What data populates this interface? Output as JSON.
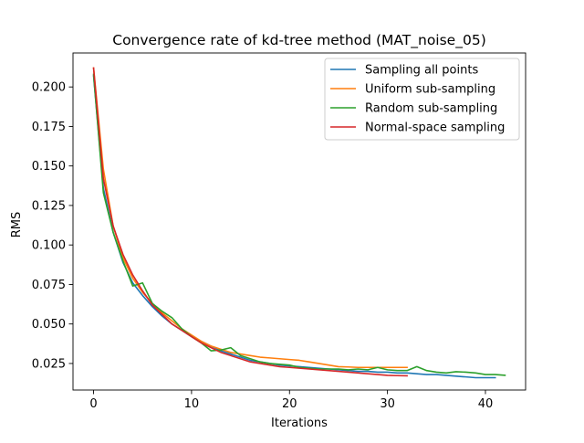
{
  "chart_data": {
    "type": "line",
    "title": "Convergence rate of kd-tree method (MAT_noise_05)",
    "xlabel": "Iterations",
    "ylabel": "RMS",
    "xlim": [
      -2.1,
      44.1
    ],
    "ylim": [
      0.0082,
      0.2215
    ],
    "xticks": [
      0,
      10,
      20,
      30,
      40
    ],
    "yticks": [
      0.025,
      0.05,
      0.075,
      0.1,
      0.125,
      0.15,
      0.175,
      0.2
    ],
    "ytick_labels": [
      "0.025",
      "0.050",
      "0.075",
      "0.100",
      "0.125",
      "0.150",
      "0.175",
      "0.200"
    ],
    "grid": false,
    "legend_position": "top-right",
    "series": [
      {
        "name": "Sampling all points",
        "color": "#1f77b4",
        "x": [
          0,
          1,
          2,
          3,
          4,
          5,
          6,
          7,
          8,
          9,
          10,
          11,
          12,
          13,
          14,
          15,
          16,
          17,
          18,
          19,
          20,
          21,
          22,
          23,
          24,
          25,
          26,
          27,
          28,
          29,
          30,
          31,
          32,
          33,
          34,
          35,
          36,
          37,
          38,
          39,
          40,
          41
        ],
        "y": [
          0.207,
          0.136,
          0.108,
          0.089,
          0.076,
          0.068,
          0.061,
          0.055,
          0.05,
          0.046,
          0.042,
          0.039,
          0.036,
          0.033,
          0.031,
          0.029,
          0.027,
          0.026,
          0.025,
          0.024,
          0.0235,
          0.023,
          0.0225,
          0.022,
          0.0215,
          0.021,
          0.0205,
          0.02,
          0.02,
          0.0195,
          0.0195,
          0.019,
          0.019,
          0.0185,
          0.018,
          0.018,
          0.0175,
          0.017,
          0.0165,
          0.016,
          0.016,
          0.016
        ]
      },
      {
        "name": "Uniform sub-sampling",
        "color": "#ff7f0e",
        "x": [
          0,
          1,
          2,
          3,
          4,
          5,
          6,
          7,
          8,
          9,
          10,
          11,
          12,
          13,
          14,
          15,
          16,
          17,
          18,
          19,
          20,
          21,
          22,
          23,
          24,
          25,
          26,
          27,
          28,
          29,
          30,
          31,
          32
        ],
        "y": [
          0.212,
          0.148,
          0.112,
          0.092,
          0.079,
          0.07,
          0.063,
          0.057,
          0.052,
          0.047,
          0.043,
          0.039,
          0.036,
          0.034,
          0.032,
          0.031,
          0.03,
          0.029,
          0.0285,
          0.028,
          0.0275,
          0.027,
          0.026,
          0.025,
          0.024,
          0.023,
          0.0228,
          0.0225,
          0.0225,
          0.0225,
          0.0225,
          0.0225,
          0.0225
        ]
      },
      {
        "name": "Random sub-sampling",
        "color": "#2ca02c",
        "x": [
          0,
          1,
          2,
          3,
          4,
          5,
          6,
          7,
          8,
          9,
          10,
          11,
          12,
          13,
          14,
          15,
          16,
          17,
          18,
          19,
          20,
          21,
          22,
          23,
          24,
          25,
          26,
          27,
          28,
          29,
          30,
          31,
          32,
          33,
          34,
          35,
          36,
          37,
          38,
          39,
          40,
          41,
          42
        ],
        "y": [
          0.208,
          0.133,
          0.108,
          0.09,
          0.074,
          0.076,
          0.063,
          0.058,
          0.054,
          0.047,
          0.042,
          0.038,
          0.033,
          0.0335,
          0.035,
          0.03,
          0.028,
          0.026,
          0.025,
          0.0245,
          0.024,
          0.0225,
          0.022,
          0.0215,
          0.0215,
          0.0215,
          0.021,
          0.0215,
          0.021,
          0.0225,
          0.021,
          0.0205,
          0.0205,
          0.023,
          0.0205,
          0.0195,
          0.019,
          0.0198,
          0.0195,
          0.019,
          0.018,
          0.018,
          0.0175
        ]
      },
      {
        "name": "Normal-space sampling",
        "color": "#d62728",
        "x": [
          0,
          1,
          2,
          3,
          4,
          5,
          6,
          7,
          8,
          9,
          10,
          11,
          12,
          13,
          14,
          15,
          16,
          17,
          18,
          19,
          20,
          21,
          22,
          23,
          24,
          25,
          26,
          27,
          28,
          29,
          30,
          31,
          32
        ],
        "y": [
          0.212,
          0.142,
          0.112,
          0.094,
          0.081,
          0.071,
          0.062,
          0.056,
          0.05,
          0.046,
          0.042,
          0.038,
          0.035,
          0.032,
          0.03,
          0.028,
          0.026,
          0.025,
          0.024,
          0.023,
          0.0225,
          0.022,
          0.0215,
          0.021,
          0.0205,
          0.02,
          0.0195,
          0.019,
          0.0185,
          0.018,
          0.0175,
          0.0173,
          0.0172
        ]
      }
    ]
  }
}
